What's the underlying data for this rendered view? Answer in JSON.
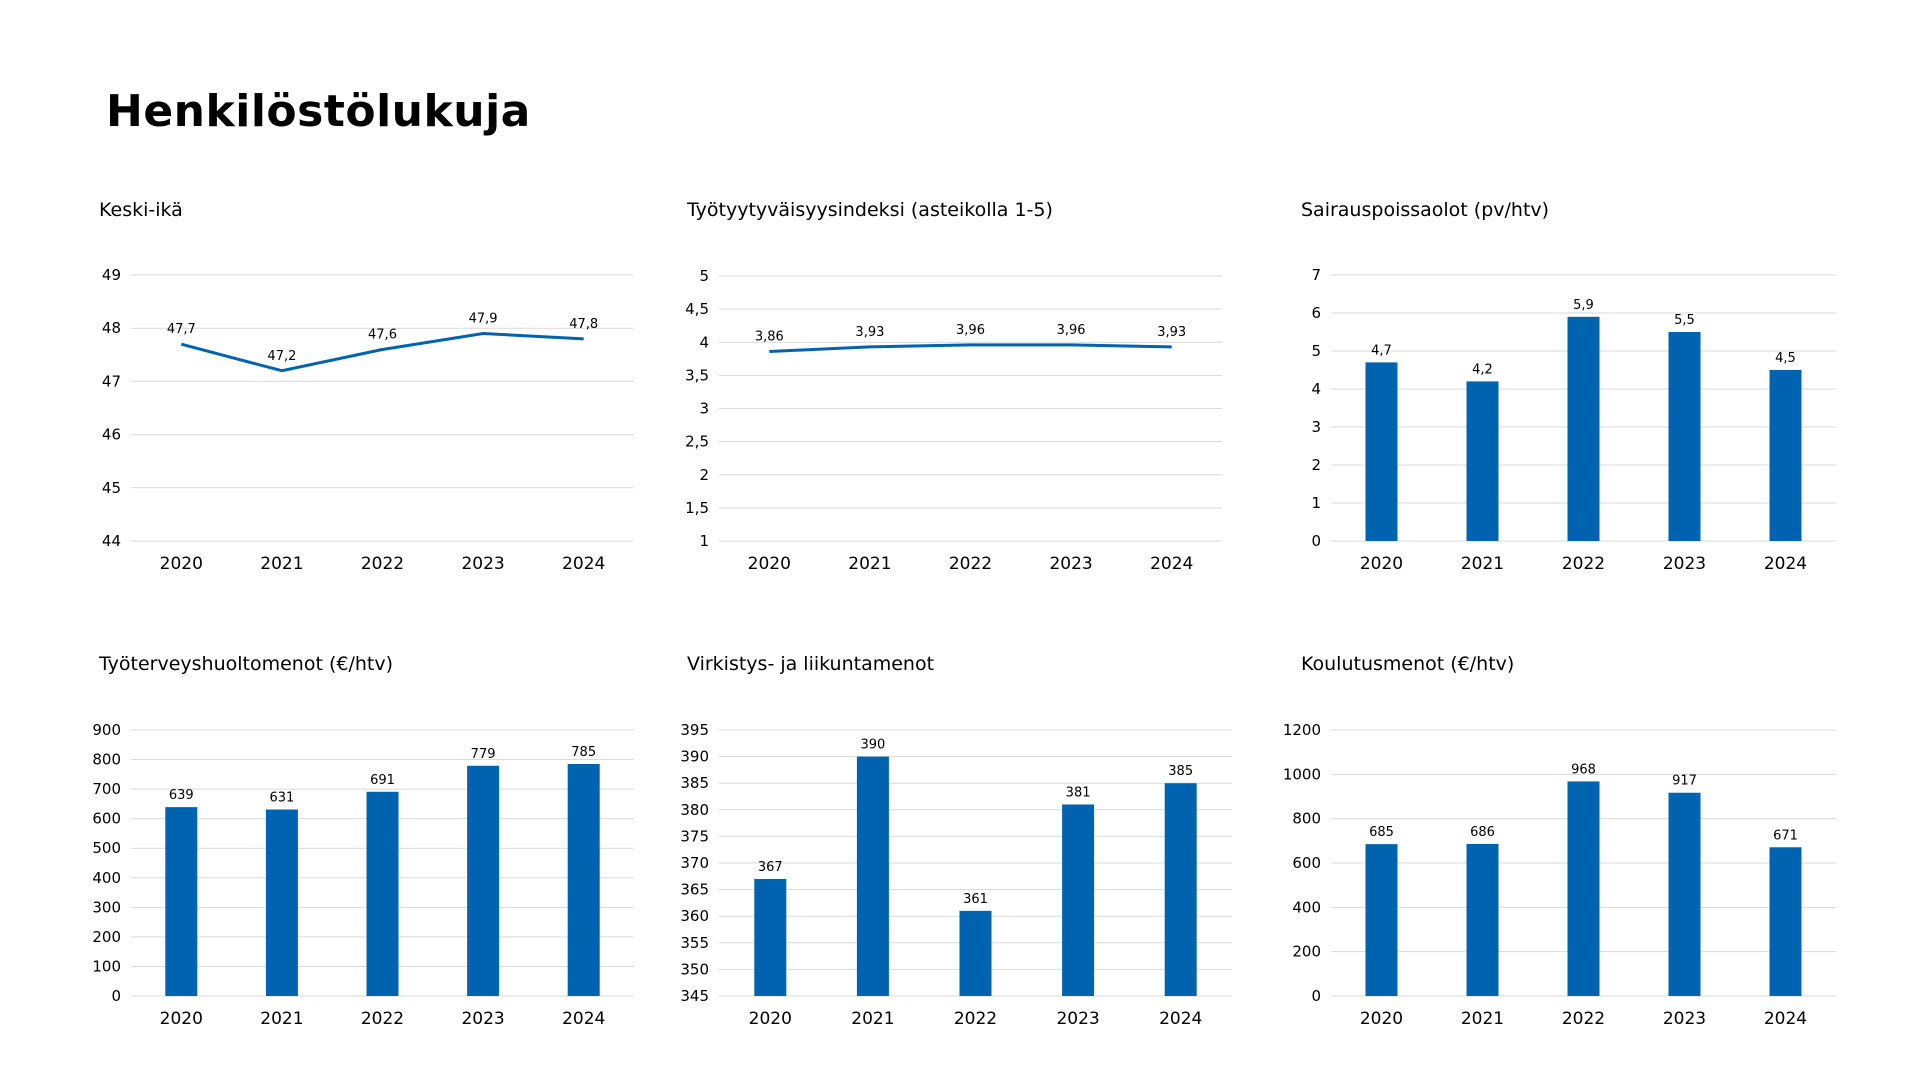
{
  "page": {
    "title": "Henkilöstölukuja"
  },
  "colors": {
    "series": "#0063AF",
    "grid": "#d9d9d9"
  },
  "chart_data": [
    {
      "type": "line",
      "title": "Keski-ikä",
      "categories": [
        "2020",
        "2021",
        "2022",
        "2023",
        "2024"
      ],
      "values": [
        47.7,
        47.2,
        47.6,
        47.9,
        47.8
      ],
      "value_labels": [
        "47,7",
        "47,2",
        "47,6",
        "47,9",
        "47,8"
      ],
      "yticks": [
        "44",
        "45",
        "46",
        "47",
        "48",
        "49"
      ],
      "ylim": [
        44,
        49
      ],
      "grid": true
    },
    {
      "type": "line",
      "title": "Työtyytyväisyysindeksi (asteikolla 1-5)",
      "categories": [
        "2020",
        "2021",
        "2022",
        "2023",
        "2024"
      ],
      "values": [
        3.86,
        3.93,
        3.96,
        3.96,
        3.93
      ],
      "value_labels": [
        "3,86",
        "3,93",
        "3,96",
        "3,96",
        "3,93"
      ],
      "yticks": [
        "1",
        "1,5",
        "2",
        "2,5",
        "3",
        "3,5",
        "4",
        "4,5",
        "5"
      ],
      "ylim": [
        1,
        5
      ],
      "grid": true
    },
    {
      "type": "bar",
      "title": "Sairauspoissaolot  (pv/htv)",
      "categories": [
        "2020",
        "2021",
        "2022",
        "2023",
        "2024"
      ],
      "values": [
        4.7,
        4.2,
        5.9,
        5.5,
        4.5
      ],
      "value_labels": [
        "4,7",
        "4,2",
        "5,9",
        "5,5",
        "4,5"
      ],
      "yticks": [
        "0",
        "1",
        "2",
        "3",
        "4",
        "5",
        "6",
        "7"
      ],
      "ylim": [
        0,
        7
      ],
      "grid": true
    },
    {
      "type": "bar",
      "title": "Työterveyshuoltomenot (€/htv)",
      "categories": [
        "2020",
        "2021",
        "2022",
        "2023",
        "2024"
      ],
      "values": [
        639,
        631,
        691,
        779,
        785
      ],
      "value_labels": [
        "639",
        "631",
        "691",
        "779",
        "785"
      ],
      "yticks": [
        "0",
        "100",
        "200",
        "300",
        "400",
        "500",
        "600",
        "700",
        "800",
        "900"
      ],
      "ylim": [
        0,
        900
      ],
      "grid": true
    },
    {
      "type": "bar",
      "title": "Virkistys- ja liikuntamenot",
      "categories": [
        "2020",
        "2021",
        "2022",
        "2023",
        "2024"
      ],
      "values": [
        367,
        390,
        361,
        381,
        385
      ],
      "value_labels": [
        "367",
        "390",
        "361",
        "381",
        "385"
      ],
      "yticks": [
        "345",
        "350",
        "355",
        "360",
        "365",
        "370",
        "375",
        "380",
        "385",
        "390",
        "395"
      ],
      "ylim": [
        345,
        395
      ],
      "grid": true
    },
    {
      "type": "bar",
      "title": "Koulutusmenot (€/htv)",
      "categories": [
        "2020",
        "2021",
        "2022",
        "2023",
        "2024"
      ],
      "values": [
        685,
        686,
        968,
        917,
        671
      ],
      "value_labels": [
        "685",
        "686",
        "968",
        "917",
        "671"
      ],
      "yticks": [
        "0",
        "200",
        "400",
        "600",
        "800",
        "1000",
        "1200"
      ],
      "ylim": [
        0,
        1200
      ],
      "grid": true
    }
  ]
}
